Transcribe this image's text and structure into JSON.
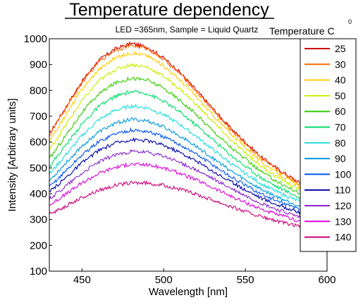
{
  "chart_data": {
    "type": "line",
    "title": "Temperature dependency",
    "subtitle": "LED =365nm, Sample = Liquid Quartz",
    "xlabel": "Wavelength [nm]",
    "ylabel": "Intensity [Arbitrary units]",
    "xlim": [
      430,
      600
    ],
    "ylim": [
      100,
      1000
    ],
    "xticks": [
      "450",
      "500",
      "550",
      "600"
    ],
    "yticks": [
      "100",
      "200",
      "300",
      "400",
      "500",
      "600",
      "700",
      "800",
      "900",
      "1000"
    ],
    "grid": false,
    "legend_title": "Temperature C",
    "legend_title_superscript": "0",
    "legend_position": "right",
    "x": [
      430,
      440,
      450,
      460,
      470,
      480,
      490,
      500,
      510,
      520,
      530,
      540,
      550,
      560,
      570,
      580,
      585
    ],
    "series": [
      {
        "name": "25",
        "color": "#cc0000",
        "values": [
          630,
          735,
          835,
          915,
          960,
          982,
          968,
          925,
          870,
          800,
          730,
          660,
          600,
          540,
          495,
          455,
          435
        ]
      },
      {
        "name": "30",
        "color": "#ff6600",
        "values": [
          625,
          730,
          830,
          910,
          955,
          975,
          962,
          920,
          865,
          795,
          725,
          655,
          595,
          535,
          490,
          450,
          430
        ]
      },
      {
        "name": "40",
        "color": "#ffcc00",
        "values": [
          600,
          705,
          805,
          880,
          925,
          945,
          935,
          895,
          840,
          775,
          705,
          640,
          580,
          522,
          478,
          440,
          420
        ]
      },
      {
        "name": "50",
        "color": "#ccee00",
        "values": [
          570,
          665,
          760,
          835,
          880,
          900,
          890,
          855,
          805,
          745,
          680,
          615,
          558,
          505,
          463,
          427,
          407
        ]
      },
      {
        "name": "60",
        "color": "#33cc00",
        "values": [
          535,
          625,
          715,
          785,
          828,
          848,
          840,
          808,
          762,
          706,
          645,
          586,
          533,
          484,
          445,
          412,
          393
        ]
      },
      {
        "name": "70",
        "color": "#00dd66",
        "values": [
          505,
          588,
          670,
          736,
          776,
          795,
          788,
          758,
          716,
          665,
          610,
          555,
          506,
          461,
          425,
          395,
          378
        ]
      },
      {
        "name": "80",
        "color": "#22dddd",
        "values": [
          475,
          550,
          625,
          685,
          722,
          740,
          733,
          706,
          668,
          622,
          572,
          522,
          478,
          437,
          405,
          378,
          362
        ]
      },
      {
        "name": "90",
        "color": "#0099dd",
        "values": [
          450,
          518,
          585,
          638,
          672,
          688,
          682,
          658,
          624,
          583,
          538,
          493,
          453,
          416,
          386,
          361,
          347
        ]
      },
      {
        "name": "100",
        "color": "#0055ee",
        "values": [
          425,
          488,
          550,
          600,
          632,
          646,
          641,
          620,
          590,
          553,
          512,
          470,
          432,
          398,
          370,
          347,
          334
        ]
      },
      {
        "name": "110",
        "color": "#0000aa",
        "values": [
          405,
          462,
          520,
          566,
          596,
          610,
          606,
          588,
          560,
          526,
          488,
          450,
          415,
          383,
          356,
          334,
          322
        ]
      },
      {
        "name": "120",
        "color": "#8822cc",
        "values": [
          380,
          430,
          480,
          522,
          550,
          563,
          560,
          545,
          521,
          491,
          458,
          424,
          392,
          362,
          337,
          316,
          305
        ]
      },
      {
        "name": "130",
        "color": "#dd00dd",
        "values": [
          355,
          398,
          442,
          478,
          502,
          514,
          512,
          499,
          479,
          453,
          424,
          394,
          366,
          340,
          318,
          300,
          290
        ]
      },
      {
        "name": "140",
        "color": "#cc0077",
        "values": [
          320,
          352,
          385,
          413,
          432,
          442,
          441,
          432,
          417,
          398,
          376,
          353,
          331,
          310,
          292,
          277,
          270
        ]
      }
    ]
  }
}
